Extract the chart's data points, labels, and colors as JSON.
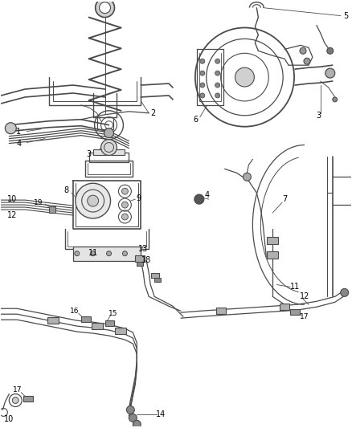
{
  "bg_color": "#ffffff",
  "line_color": "#4a4a4a",
  "text_color": "#000000",
  "fig_width": 4.38,
  "fig_height": 5.33,
  "dpi": 100
}
